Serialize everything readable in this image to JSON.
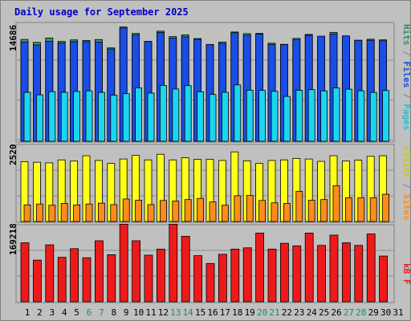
{
  "colors": {
    "background": "#c0c0c0",
    "panel_border": "#808080",
    "grid": "#8c8c8c",
    "title": "#0000c8",
    "hits": "#1a4de6",
    "files": "#1ad6f0",
    "pages": "#26d0e6",
    "visits": "#ffff1a",
    "sites": "#ff8c1a",
    "kbytes": "#ee1a1a",
    "weekend_label": "#1a8c6a",
    "weekday_label": "#000000",
    "hits_title": "#2e8c6a",
    "files_title": "#1a4de6",
    "pages_title": "#26c0d6",
    "visits_title": "#c8c81a",
    "sites_title": "#ff8c1a",
    "kbytes_title": "#ee1a1a"
  },
  "chart_data": [
    {
      "type": "bar",
      "title": "Daily usage for September 2025",
      "panel": "hits-files-pages",
      "ymax_label": "14686",
      "ylim": [
        0,
        14686
      ],
      "grid": true,
      "categories": [
        "1",
        "2",
        "3",
        "4",
        "5",
        "6",
        "7",
        "8",
        "9",
        "10",
        "11",
        "12",
        "13",
        "14",
        "15",
        "16",
        "17",
        "18",
        "19",
        "20",
        "21",
        "22",
        "23",
        "24",
        "25",
        "26",
        "27",
        "28",
        "29",
        "30",
        "31"
      ],
      "series": [
        {
          "name": "Hits",
          "values": [
            12850,
            12480,
            13030,
            12600,
            12790,
            12720,
            12840,
            11780,
            14420,
            13610,
            12600,
            13890,
            13210,
            13430,
            12960,
            12220,
            12520,
            13790,
            13580,
            13610,
            12380,
            12230,
            12980,
            13480,
            12820,
            13740,
            13160,
            12750,
            12880,
            12800,
            null
          ]
        },
        {
          "name": "Files",
          "values": [
            12510,
            12150,
            12600,
            12400,
            12560,
            12560,
            12510,
            11640,
            14280,
            13410,
            12580,
            13720,
            13000,
            13180,
            12850,
            12210,
            12340,
            13690,
            13380,
            13520,
            12210,
            12200,
            12800,
            13380,
            13260,
            13520,
            13300,
            12730,
            12740,
            12680,
            null
          ]
        },
        {
          "name": "Pages",
          "values": [
            6170,
            5860,
            6260,
            6170,
            6280,
            6360,
            6170,
            5810,
            6000,
            6740,
            6080,
            7050,
            6590,
            7020,
            6240,
            5910,
            6180,
            7110,
            6440,
            6420,
            6300,
            5660,
            6430,
            6510,
            6350,
            6720,
            6570,
            6370,
            6160,
            6400,
            null
          ]
        }
      ]
    },
    {
      "type": "bar",
      "panel": "visits-sites",
      "ymax_label": "2520",
      "ylim": [
        0,
        2520
      ],
      "grid": true,
      "categories": [
        "1",
        "2",
        "3",
        "4",
        "5",
        "6",
        "7",
        "8",
        "9",
        "10",
        "11",
        "12",
        "13",
        "14",
        "15",
        "16",
        "17",
        "18",
        "19",
        "20",
        "21",
        "22",
        "23",
        "24",
        "25",
        "26",
        "27",
        "28",
        "29",
        "30",
        "31"
      ],
      "series": [
        {
          "name": "Visits",
          "values": [
            2020,
            2000,
            1980,
            2080,
            2040,
            2220,
            2060,
            1960,
            2110,
            2230,
            2080,
            2270,
            2080,
            2150,
            2100,
            2100,
            2060,
            2350,
            2050,
            1960,
            2060,
            2080,
            2130,
            2110,
            2030,
            2220,
            2040,
            2070,
            2200,
            2220,
            null
          ]
        },
        {
          "name": "Sites",
          "values": [
            560,
            590,
            550,
            610,
            560,
            590,
            620,
            570,
            760,
            720,
            570,
            710,
            690,
            740,
            780,
            660,
            550,
            870,
            880,
            710,
            630,
            610,
            1020,
            720,
            740,
            1210,
            800,
            800,
            800,
            920,
            null
          ]
        }
      ]
    },
    {
      "type": "bar",
      "panel": "kbytes",
      "ymax_label": "169218",
      "ylim": [
        0,
        169218
      ],
      "grid": true,
      "categories": [
        "1",
        "2",
        "3",
        "4",
        "5",
        "6",
        "7",
        "8",
        "9",
        "10",
        "11",
        "12",
        "13",
        "14",
        "15",
        "16",
        "17",
        "18",
        "19",
        "20",
        "21",
        "22",
        "23",
        "24",
        "25",
        "26",
        "27",
        "28",
        "29",
        "30",
        "31"
      ],
      "series": [
        {
          "name": "KBytes",
          "values": [
            133700,
            94300,
            129000,
            100800,
            120400,
            99800,
            138300,
            106600,
            175800,
            138300,
            105600,
            119300,
            175800,
            148400,
            104500,
            86800,
            107600,
            119300,
            122300,
            155700,
            119300,
            132600,
            126800,
            155700,
            127800,
            151100,
            133700,
            127800,
            153700,
            103600,
            null
          ]
        }
      ]
    }
  ],
  "panel_titles": {
    "top": [
      {
        "text": "Pages",
        "color_key": "pages_title"
      },
      {
        "text": " / ",
        "color_key": "panel_border"
      },
      {
        "text": "Files",
        "color_key": "files_title"
      },
      {
        "text": " / ",
        "color_key": "panel_border"
      },
      {
        "text": "Hits",
        "color_key": "hits_title"
      }
    ],
    "middle": [
      {
        "text": "Sites",
        "color_key": "sites_title"
      },
      {
        "text": " / ",
        "color_key": "panel_border"
      },
      {
        "text": "Visits",
        "color_key": "visits_title"
      }
    ],
    "bottom": [
      {
        "text": "kB F",
        "color_key": "kbytes_title"
      }
    ]
  },
  "weekend_days": [
    6,
    7,
    13,
    14,
    20,
    21,
    27,
    28
  ]
}
